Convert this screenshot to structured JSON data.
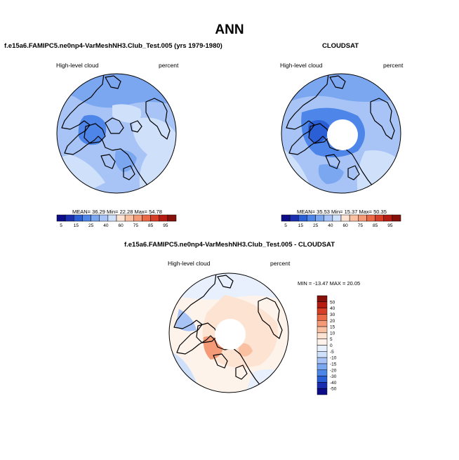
{
  "main_title": "ANN",
  "panels": {
    "model": {
      "title": "f.e15a6.FAMIPC5.ne0np4-VarMeshNH3.Club_Test.005 (yrs 1979-1980)",
      "left_label": "High-level cloud",
      "right_label": "percent",
      "stats": {
        "mean_label": "MEAN=",
        "mean": "36.29",
        "min_label": "Min=",
        "min": "22.28",
        "max_label": "Max=",
        "max": "54.78"
      }
    },
    "obs": {
      "title": "CLOUDSAT",
      "left_label": "High-level cloud",
      "right_label": "percent",
      "stats": {
        "mean_label": "MEAN=",
        "mean": "35.53",
        "min_label": "Min=",
        "min": "15.37",
        "max_label": "Max=",
        "max": "50.35"
      }
    },
    "diff": {
      "title": "f.e15a6.FAMIPC5.ne0np4-VarMeshNH3.Club_Test.005 - CLOUDSAT",
      "left_label": "High-level cloud",
      "right_label": "percent",
      "stats_text": "MIN = -13.47 MAX = 20.05"
    }
  },
  "colors": {
    "abs_scale": [
      "#0d0d8a",
      "#1a2fb0",
      "#2b5fd6",
      "#4d86e8",
      "#7ba6f0",
      "#a8c4f6",
      "#cfe0fb",
      "#fde3d2",
      "#f9c0a2",
      "#f59a76",
      "#ea6a48",
      "#d63e27",
      "#b51d12",
      "#86100a"
    ],
    "diff_scale": [
      "#0d0d8a",
      "#1a2fb0",
      "#2b5fd6",
      "#4d86e8",
      "#7ba6f0",
      "#a8c4f6",
      "#cfe0fb",
      "#e8f0fd",
      "#fef3ea",
      "#fde3d2",
      "#f9c0a2",
      "#f59a76",
      "#ea6a48",
      "#d63e27",
      "#b51d12",
      "#86100a"
    ],
    "coast": "#000000"
  },
  "chart_data": [
    {
      "type": "heatmap",
      "projection": "north polar stereographic",
      "title": "f.e15a6.FAMIPC5.ne0np4-VarMeshNH3.Club_Test.005 (yrs 1979-1980)",
      "variable": "High-level cloud",
      "units": "percent",
      "mean": 36.29,
      "min": 22.28,
      "max": 54.78,
      "colorbar_ticks": [
        "5",
        "15",
        "25",
        "40",
        "60",
        "75",
        "85",
        "95"
      ],
      "levels": [
        5,
        10,
        15,
        20,
        25,
        30,
        40,
        50,
        60,
        70,
        75,
        80,
        85,
        90,
        95
      ]
    },
    {
      "type": "heatmap",
      "projection": "north polar stereographic",
      "title": "CLOUDSAT",
      "variable": "High-level cloud",
      "units": "percent",
      "mean": 35.53,
      "min": 15.37,
      "max": 50.35,
      "colorbar_ticks": [
        "5",
        "15",
        "25",
        "40",
        "60",
        "75",
        "85",
        "95"
      ],
      "levels": [
        5,
        10,
        15,
        20,
        25,
        30,
        40,
        50,
        60,
        70,
        75,
        80,
        85,
        90,
        95
      ]
    },
    {
      "type": "heatmap",
      "projection": "north polar stereographic",
      "title": "f.e15a6.FAMIPC5.ne0np4-VarMeshNH3.Club_Test.005 - CLOUDSAT",
      "variable": "High-level cloud",
      "units": "percent",
      "min": -13.47,
      "max": 20.05,
      "colorbar_ticks": [
        "50",
        "40",
        "30",
        "20",
        "15",
        "10",
        "5",
        "0",
        "-5",
        "-10",
        "-15",
        "-20",
        "-30",
        "-40",
        "-50"
      ]
    }
  ]
}
